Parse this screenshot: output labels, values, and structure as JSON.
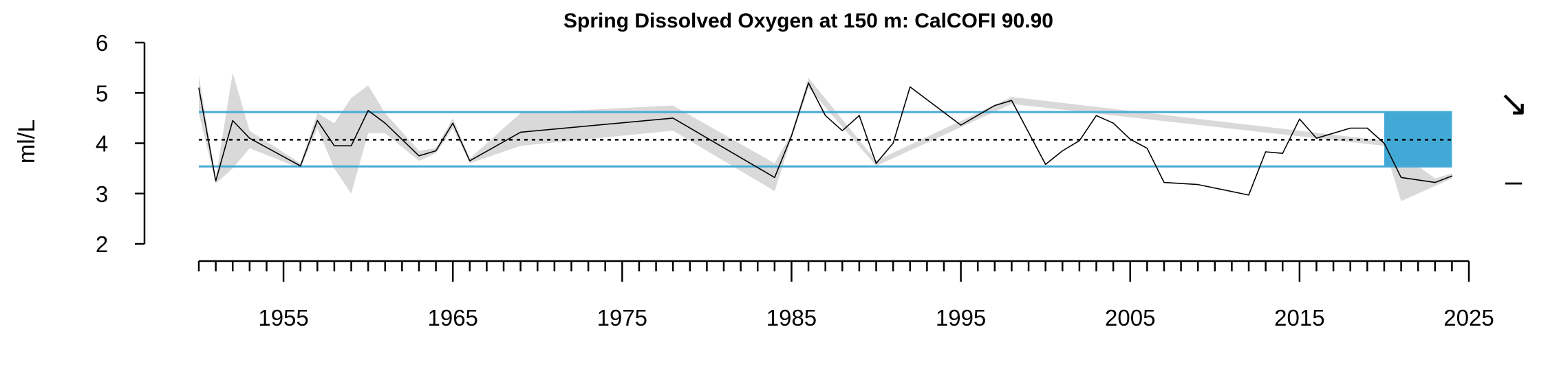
{
  "chart_data": {
    "type": "line",
    "title": "Spring Dissolved Oxygen at 150 m: CalCOFI 90.90",
    "ylabel": "ml/L",
    "xlabel": "",
    "xlim": [
      1950,
      2025
    ],
    "ylim": [
      2,
      6
    ],
    "y_ticks": [
      2,
      3,
      4,
      5,
      6
    ],
    "x_major_ticks": [
      1955,
      1965,
      1975,
      1985,
      1995,
      2005,
      2015,
      2025
    ],
    "mean": 4.07,
    "sd_band": [
      3.54,
      4.62
    ],
    "recent_period": [
      2020,
      2024
    ],
    "trend_symbol": "↘",
    "mean_symbol": "–",
    "colors": {
      "line": "#000000",
      "band": "#48aad7",
      "ribbon": "#d9d9d9",
      "recent": "#42a8d5"
    },
    "series": [
      {
        "points": [
          [
            1950,
            5.1
          ],
          [
            1951,
            3.25
          ],
          [
            1952,
            4.45
          ],
          [
            1953,
            4.1
          ],
          [
            1956,
            3.55
          ],
          [
            1957,
            4.45
          ],
          [
            1958,
            3.95
          ],
          [
            1959,
            3.95
          ],
          [
            1960,
            4.65
          ],
          [
            1961,
            4.4
          ],
          [
            1963,
            3.75
          ],
          [
            1964,
            3.85
          ],
          [
            1965,
            4.4
          ],
          [
            1966,
            3.65
          ],
          [
            1969,
            4.22
          ],
          [
            1978,
            4.5
          ],
          [
            1984,
            3.32
          ],
          [
            1985,
            4.15
          ],
          [
            1986,
            5.2
          ],
          [
            1987,
            4.55
          ],
          [
            1988,
            4.25
          ],
          [
            1989,
            4.55
          ],
          [
            1990,
            3.6
          ],
          [
            1991,
            4.0
          ],
          [
            1992,
            5.12
          ],
          [
            1995,
            4.36
          ],
          [
            1997,
            4.75
          ],
          [
            1998,
            4.85
          ],
          [
            2000,
            3.58
          ],
          [
            2001,
            3.85
          ],
          [
            2002,
            4.05
          ],
          [
            2003,
            4.55
          ],
          [
            2004,
            4.4
          ],
          [
            2005,
            4.08
          ],
          [
            2006,
            3.9
          ],
          [
            2007,
            3.22
          ],
          [
            2009,
            3.18
          ],
          [
            2012,
            2.97
          ],
          [
            2013,
            3.83
          ],
          [
            2014,
            3.8
          ],
          [
            2015,
            4.48
          ],
          [
            2016,
            4.1
          ],
          [
            2018,
            4.3
          ],
          [
            2019,
            4.3
          ],
          [
            2020,
            4.0
          ],
          [
            2021,
            3.32
          ],
          [
            2023,
            3.22
          ],
          [
            2024,
            3.35
          ]
        ],
        "error_band": [
          [
            1950,
            4.6,
            5.35
          ],
          [
            1951,
            3.2,
            3.3
          ],
          [
            1952,
            3.5,
            5.4
          ],
          [
            1953,
            3.9,
            4.25
          ],
          [
            1956,
            3.5,
            3.6
          ],
          [
            1957,
            4.3,
            4.6
          ],
          [
            1958,
            3.5,
            4.4
          ],
          [
            1959,
            3.0,
            4.9
          ],
          [
            1960,
            4.2,
            5.15
          ],
          [
            1961,
            4.2,
            4.6
          ],
          [
            1963,
            3.65,
            3.85
          ],
          [
            1964,
            3.8,
            3.9
          ],
          [
            1965,
            4.3,
            4.5
          ],
          [
            1966,
            3.6,
            3.7
          ],
          [
            1969,
            3.95,
            4.6
          ],
          [
            1978,
            4.25,
            4.75
          ],
          [
            1984,
            3.05,
            3.6
          ],
          [
            1985,
            4.1,
            4.2
          ],
          [
            1986,
            5.1,
            5.3
          ],
          [
            1990,
            3.55,
            3.65
          ],
          [
            1998,
            4.78,
            4.92
          ],
          [
            2020,
            3.95,
            4.05
          ],
          [
            2021,
            2.85,
            3.8
          ],
          [
            2023,
            3.15,
            3.3
          ],
          [
            2024,
            3.3,
            3.4
          ]
        ]
      }
    ]
  }
}
